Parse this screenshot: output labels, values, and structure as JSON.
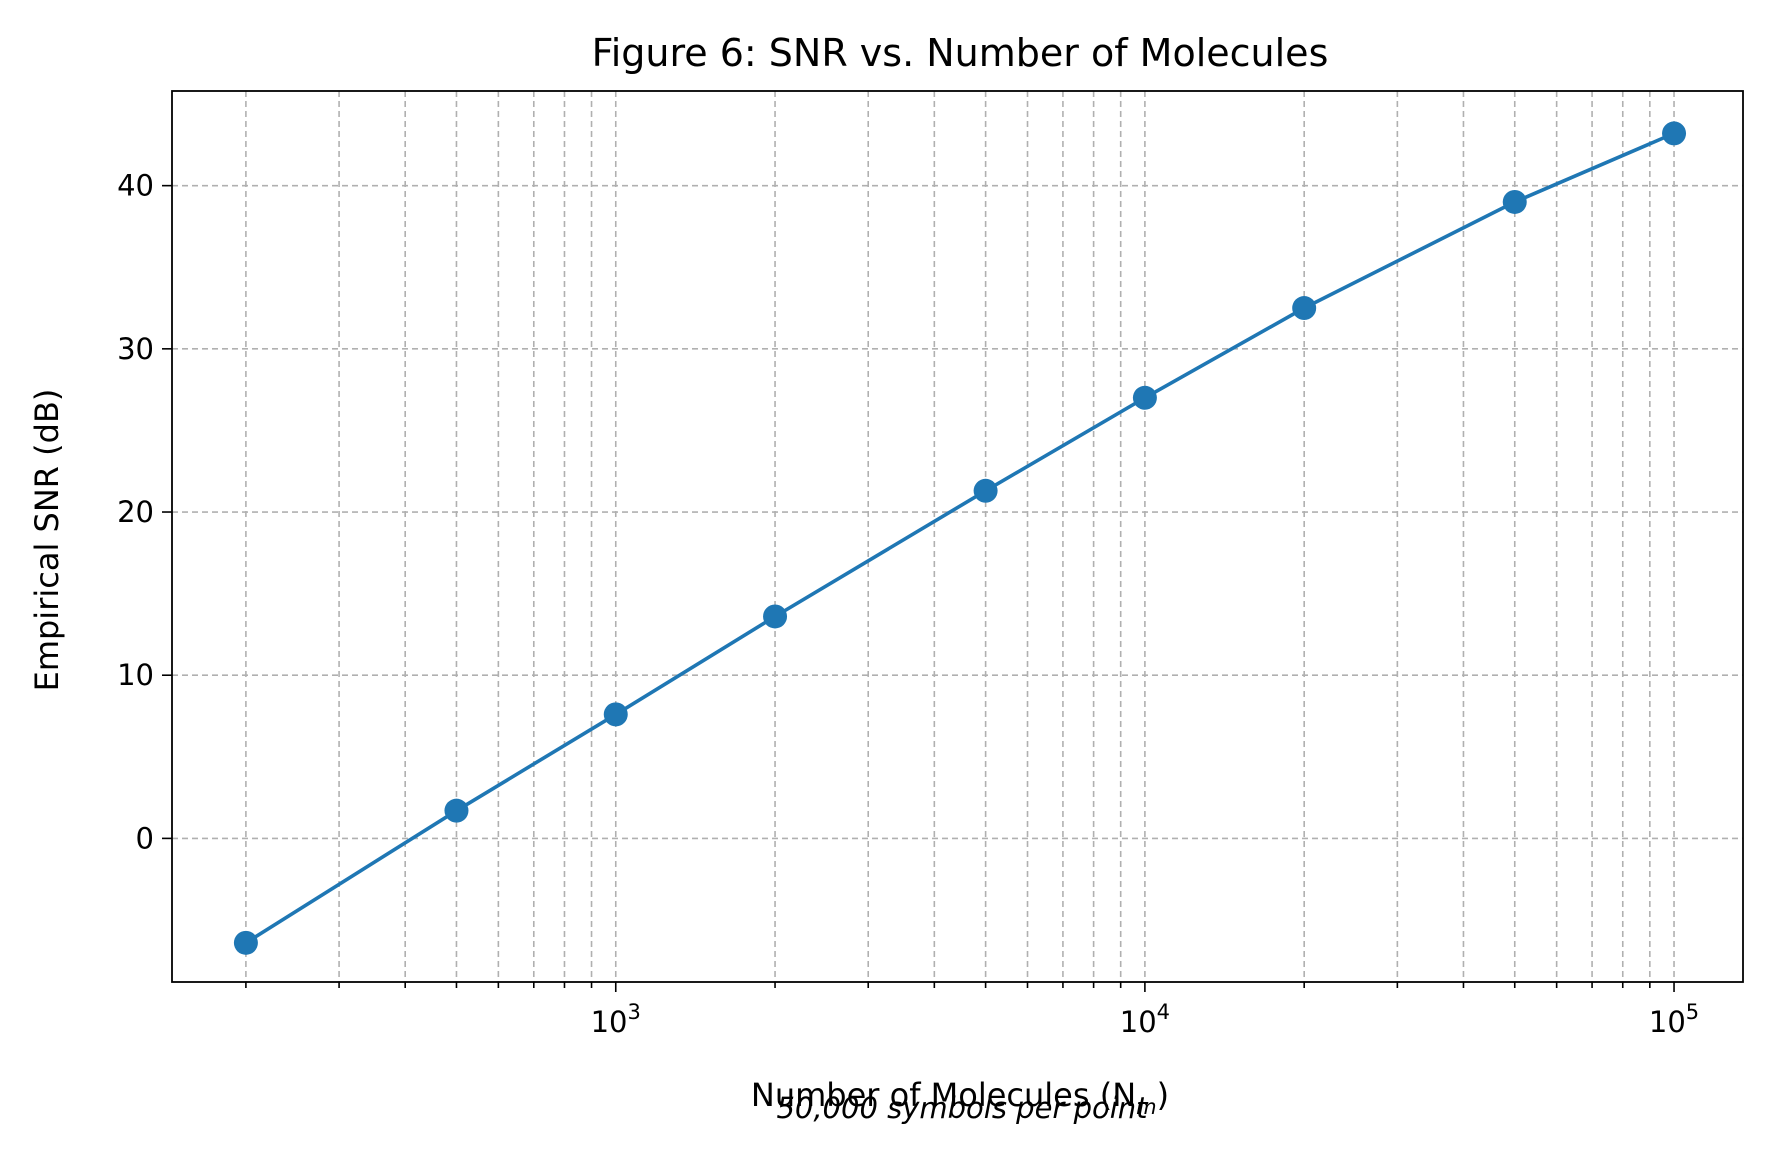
{
  "chart_data": {
    "type": "line",
    "title": "Figure 6: SNR vs. Number of Molecules",
    "xlabel": "Number of Molecules (N",
    "xlabel_subscript": "m",
    "xlabel_close": ")",
    "ylabel": "Empirical SNR (dB)",
    "annotation": "50,000 symbols per point",
    "x_scale": "log",
    "xlim": [
      145,
      135000
    ],
    "ylim": [
      -8.8,
      45.8
    ],
    "grid": true,
    "grid_which": "both",
    "x_major_ticks": [
      {
        "value": 1000,
        "base": "10",
        "exp": "3"
      },
      {
        "value": 10000,
        "base": "10",
        "exp": "4"
      },
      {
        "value": 100000,
        "base": "10",
        "exp": "5"
      }
    ],
    "y_ticks": [
      0,
      10,
      20,
      30,
      40
    ],
    "series": [
      {
        "color": "#1f77b4",
        "marker": "circle",
        "x": [
          200,
          500,
          1000,
          2000,
          5000,
          10000,
          20000,
          50000,
          100000
        ],
        "y": [
          -6.4,
          1.7,
          7.6,
          13.6,
          21.3,
          27.0,
          32.5,
          39.0,
          43.2
        ]
      }
    ]
  }
}
